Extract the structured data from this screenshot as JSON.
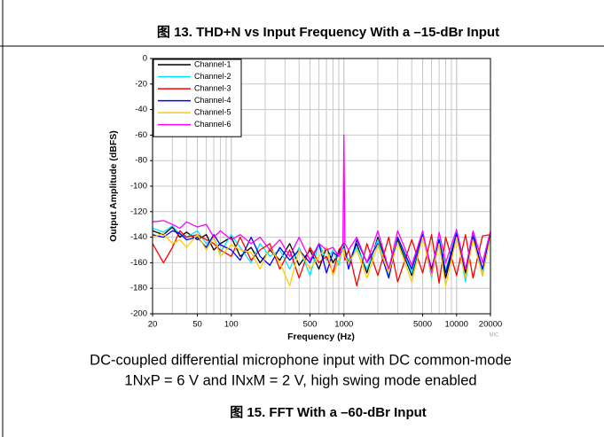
{
  "figure_13_title": "图 13. THD+N vs Input Frequency With a –15-dBr Input",
  "chart_data": {
    "type": "line",
    "xlabel": "Frequency (Hz)",
    "ylabel": "Output Amplitude (dBFS)",
    "watermark": "MIC",
    "xscale": "log",
    "grid": true,
    "legend": "upper left",
    "xlim": [
      20,
      20000
    ],
    "xticks": [
      20,
      50,
      100,
      500,
      1000,
      5000,
      10000,
      20000
    ],
    "ylim": [
      -200,
      0
    ],
    "yticks": [
      0,
      -20,
      -40,
      -60,
      -80,
      -100,
      -120,
      -140,
      -160,
      -180,
      -200
    ],
    "x": [
      20,
      25,
      30,
      35,
      40,
      50,
      60,
      70,
      80,
      100,
      120,
      150,
      180,
      220,
      270,
      330,
      400,
      500,
      600,
      700,
      800,
      900,
      980,
      1000,
      1020,
      1100,
      1300,
      1600,
      2000,
      2500,
      3000,
      4000,
      5000,
      6000,
      7000,
      8000,
      10000,
      12000,
      14000,
      17000,
      20000
    ],
    "series": [
      {
        "name": "Channel-1",
        "color": "#000000",
        "values": [
          -135,
          -138,
          -132,
          -140,
          -136,
          -142,
          -138,
          -150,
          -145,
          -140,
          -155,
          -148,
          -160,
          -150,
          -158,
          -145,
          -162,
          -150,
          -165,
          -148,
          -160,
          -152,
          -145,
          -145,
          -150,
          -160,
          -145,
          -168,
          -140,
          -165,
          -142,
          -170,
          -138,
          -165,
          -140,
          -172,
          -138,
          -168,
          -136,
          -170,
          -137
        ]
      },
      {
        "name": "Channel-2",
        "color": "#00e5ff",
        "values": [
          -133,
          -136,
          -131,
          -138,
          -140,
          -135,
          -145,
          -140,
          -152,
          -138,
          -148,
          -160,
          -145,
          -155,
          -150,
          -165,
          -148,
          -170,
          -145,
          -158,
          -150,
          -162,
          -148,
          -146,
          -152,
          -158,
          -148,
          -165,
          -142,
          -170,
          -140,
          -168,
          -137,
          -172,
          -140,
          -166,
          -136,
          -175,
          -138,
          -168,
          -136
        ]
      },
      {
        "name": "Channel-3",
        "color": "#ff0000",
        "values": [
          -145,
          -160,
          -148,
          -135,
          -140,
          -138,
          -142,
          -145,
          -150,
          -155,
          -140,
          -158,
          -150,
          -145,
          -165,
          -150,
          -172,
          -148,
          -160,
          -155,
          -168,
          -150,
          -146,
          -147,
          -158,
          -150,
          -178,
          -145,
          -170,
          -140,
          -175,
          -142,
          -168,
          -138,
          -176,
          -140,
          -170,
          -138,
          -172,
          -139,
          -138
        ]
      },
      {
        "name": "Channel-4",
        "color": "#0000ff",
        "values": [
          -138,
          -140,
          -135,
          -137,
          -142,
          -140,
          -148,
          -138,
          -146,
          -150,
          -158,
          -140,
          -155,
          -162,
          -148,
          -158,
          -150,
          -160,
          -145,
          -168,
          -152,
          -155,
          -150,
          -148,
          -150,
          -165,
          -142,
          -160,
          -145,
          -172,
          -140,
          -165,
          -138,
          -170,
          -142,
          -168,
          -137,
          -172,
          -139,
          -165,
          -137
        ]
      },
      {
        "name": "Channel-5",
        "color": "#ffcc00",
        "values": [
          -140,
          -137,
          -145,
          -142,
          -148,
          -138,
          -150,
          -140,
          -155,
          -146,
          -150,
          -152,
          -165,
          -148,
          -160,
          -178,
          -150,
          -165,
          -155,
          -148,
          -170,
          -158,
          -150,
          -149,
          -155,
          -160,
          -150,
          -172,
          -146,
          -168,
          -144,
          -175,
          -140,
          -170,
          -145,
          -178,
          -140,
          -172,
          -142,
          -170,
          -140
        ]
      },
      {
        "name": "Channel-6",
        "color": "#ff00ff",
        "values": [
          -128,
          -127,
          -130,
          -133,
          -128,
          -132,
          -130,
          -140,
          -135,
          -142,
          -138,
          -145,
          -140,
          -150,
          -142,
          -155,
          -140,
          -158,
          -145,
          -150,
          -148,
          -155,
          -145,
          -60,
          -145,
          -150,
          -140,
          -160,
          -135,
          -165,
          -135,
          -162,
          -135,
          -168,
          -136,
          -160,
          -134,
          -165,
          -135,
          -160,
          -135
        ]
      }
    ]
  },
  "description": [
    "DC-coupled differential microphone input with DC common-mode",
    "1NxP = 6 V and INxM = 2 V, high swing mode enabled"
  ],
  "figure_15_title": "图 15. FFT With a –60-dBr Input"
}
